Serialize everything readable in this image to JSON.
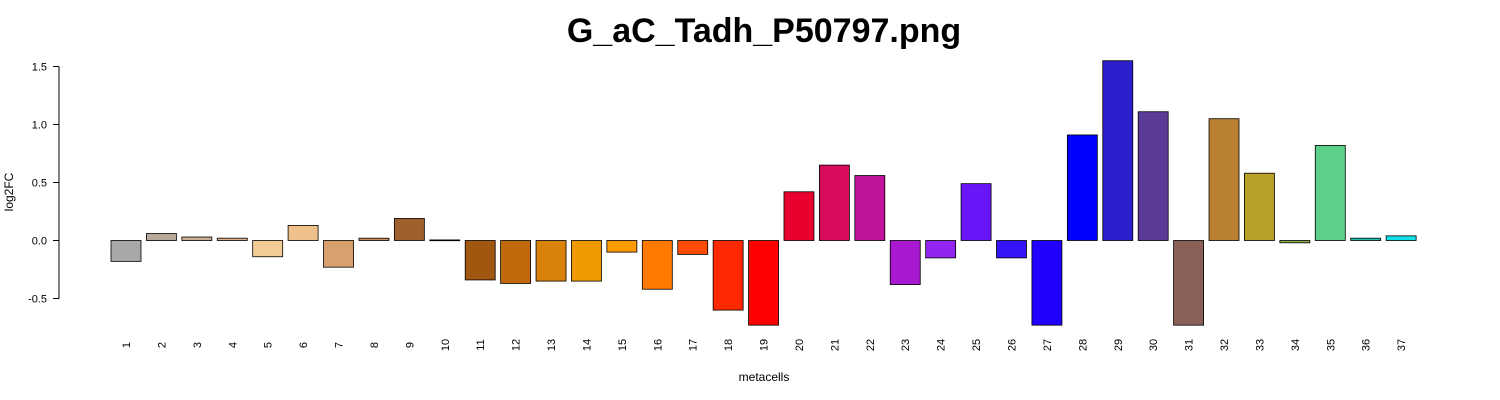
{
  "chart_data": {
    "type": "bar",
    "title": "G_aC_Tadh_P50797.png",
    "xlabel": "metacells",
    "ylabel": "log2FC",
    "yticks": [
      "1.5",
      "1.0",
      "0.5",
      "0.0",
      "-0.5"
    ],
    "ylim": [
      -0.5,
      1.5
    ],
    "categories": [
      "1",
      "2",
      "3",
      "4",
      "5",
      "6",
      "7",
      "8",
      "9",
      "10",
      "11",
      "12",
      "13",
      "14",
      "15",
      "16",
      "17",
      "18",
      "19",
      "20",
      "21",
      "22",
      "23",
      "24",
      "25",
      "26",
      "27",
      "28",
      "29",
      "30",
      "31",
      "32",
      "33",
      "34",
      "35",
      "36",
      "37"
    ],
    "values": [
      -0.18,
      0.06,
      0.03,
      0.02,
      -0.14,
      0.13,
      -0.23,
      0.02,
      0.19,
      0.005,
      -0.34,
      -0.37,
      -0.35,
      -0.35,
      -0.1,
      -0.42,
      -0.12,
      -0.6,
      -0.73,
      0.42,
      0.65,
      0.56,
      -0.38,
      -0.15,
      0.49,
      -0.15,
      -0.73,
      0.91,
      1.55,
      1.11,
      -0.73,
      1.05,
      0.58,
      -0.02,
      0.82,
      0.02,
      0.04
    ],
    "colors": [
      "#a8a8a8",
      "#b8a89a",
      "#c8ae94",
      "#e0b08a",
      "#f2cc96",
      "#f0c08a",
      "#d8a06c",
      "#c88c58",
      "#a0602c",
      "#9c5820",
      "#a05810",
      "#c06a0c",
      "#d8820a",
      "#f09a00",
      "#ff9a00",
      "#ff7800",
      "#ff4c00",
      "#ff2800",
      "#ff0000",
      "#e8002e",
      "#d80c5c",
      "#c0149c",
      "#a818d0",
      "#9424f0",
      "#6a14f8",
      "#3414f8",
      "#2000ff",
      "#0000ff",
      "#2c20cc",
      "#5a3c98",
      "#8a6058",
      "#b88030",
      "#b8a028",
      "#90ae48",
      "#5ccf8a",
      "#20c0b0",
      "#10e0e8"
    ]
  }
}
